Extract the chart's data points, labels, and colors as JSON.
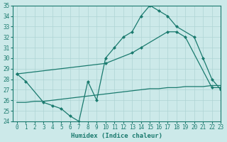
{
  "line1_x": [
    0,
    1,
    3,
    4,
    5,
    6,
    7,
    8,
    9,
    10,
    11,
    12,
    13,
    14,
    15,
    16,
    17,
    18,
    20,
    21,
    22,
    23
  ],
  "line1_y": [
    28.5,
    27.8,
    25.8,
    25.5,
    25.2,
    24.5,
    24.0,
    27.8,
    26.0,
    30.0,
    31.0,
    32.0,
    32.5,
    34.0,
    35.0,
    34.5,
    34.0,
    33.0,
    32.0,
    30.0,
    28.0,
    27.0
  ],
  "line2_x": [
    0,
    10,
    13,
    14,
    17,
    18,
    19,
    22,
    23
  ],
  "line2_y": [
    28.5,
    29.5,
    30.5,
    31.0,
    32.5,
    32.5,
    32.0,
    27.2,
    27.2
  ],
  "line3_x": [
    0,
    1,
    2,
    3,
    4,
    5,
    6,
    7,
    8,
    9,
    10,
    11,
    12,
    13,
    14,
    15,
    16,
    17,
    18,
    19,
    20,
    21,
    22,
    23
  ],
  "line3_y": [
    25.8,
    25.8,
    25.9,
    25.9,
    26.0,
    26.1,
    26.2,
    26.3,
    26.4,
    26.5,
    26.6,
    26.7,
    26.8,
    26.9,
    27.0,
    27.1,
    27.1,
    27.2,
    27.2,
    27.3,
    27.3,
    27.3,
    27.4,
    27.4
  ],
  "color": "#1a7a6e",
  "bg_color": "#cce9e9",
  "grid_color": "#aed4d4",
  "xlabel": "Humidex (Indice chaleur)",
  "ylim": [
    24,
    35
  ],
  "xlim": [
    -0.5,
    23
  ],
  "yticks": [
    24,
    25,
    26,
    27,
    28,
    29,
    30,
    31,
    32,
    33,
    34,
    35
  ],
  "xticks": [
    0,
    1,
    2,
    3,
    4,
    5,
    6,
    7,
    8,
    9,
    10,
    11,
    12,
    13,
    14,
    15,
    16,
    17,
    18,
    19,
    20,
    21,
    22,
    23
  ]
}
